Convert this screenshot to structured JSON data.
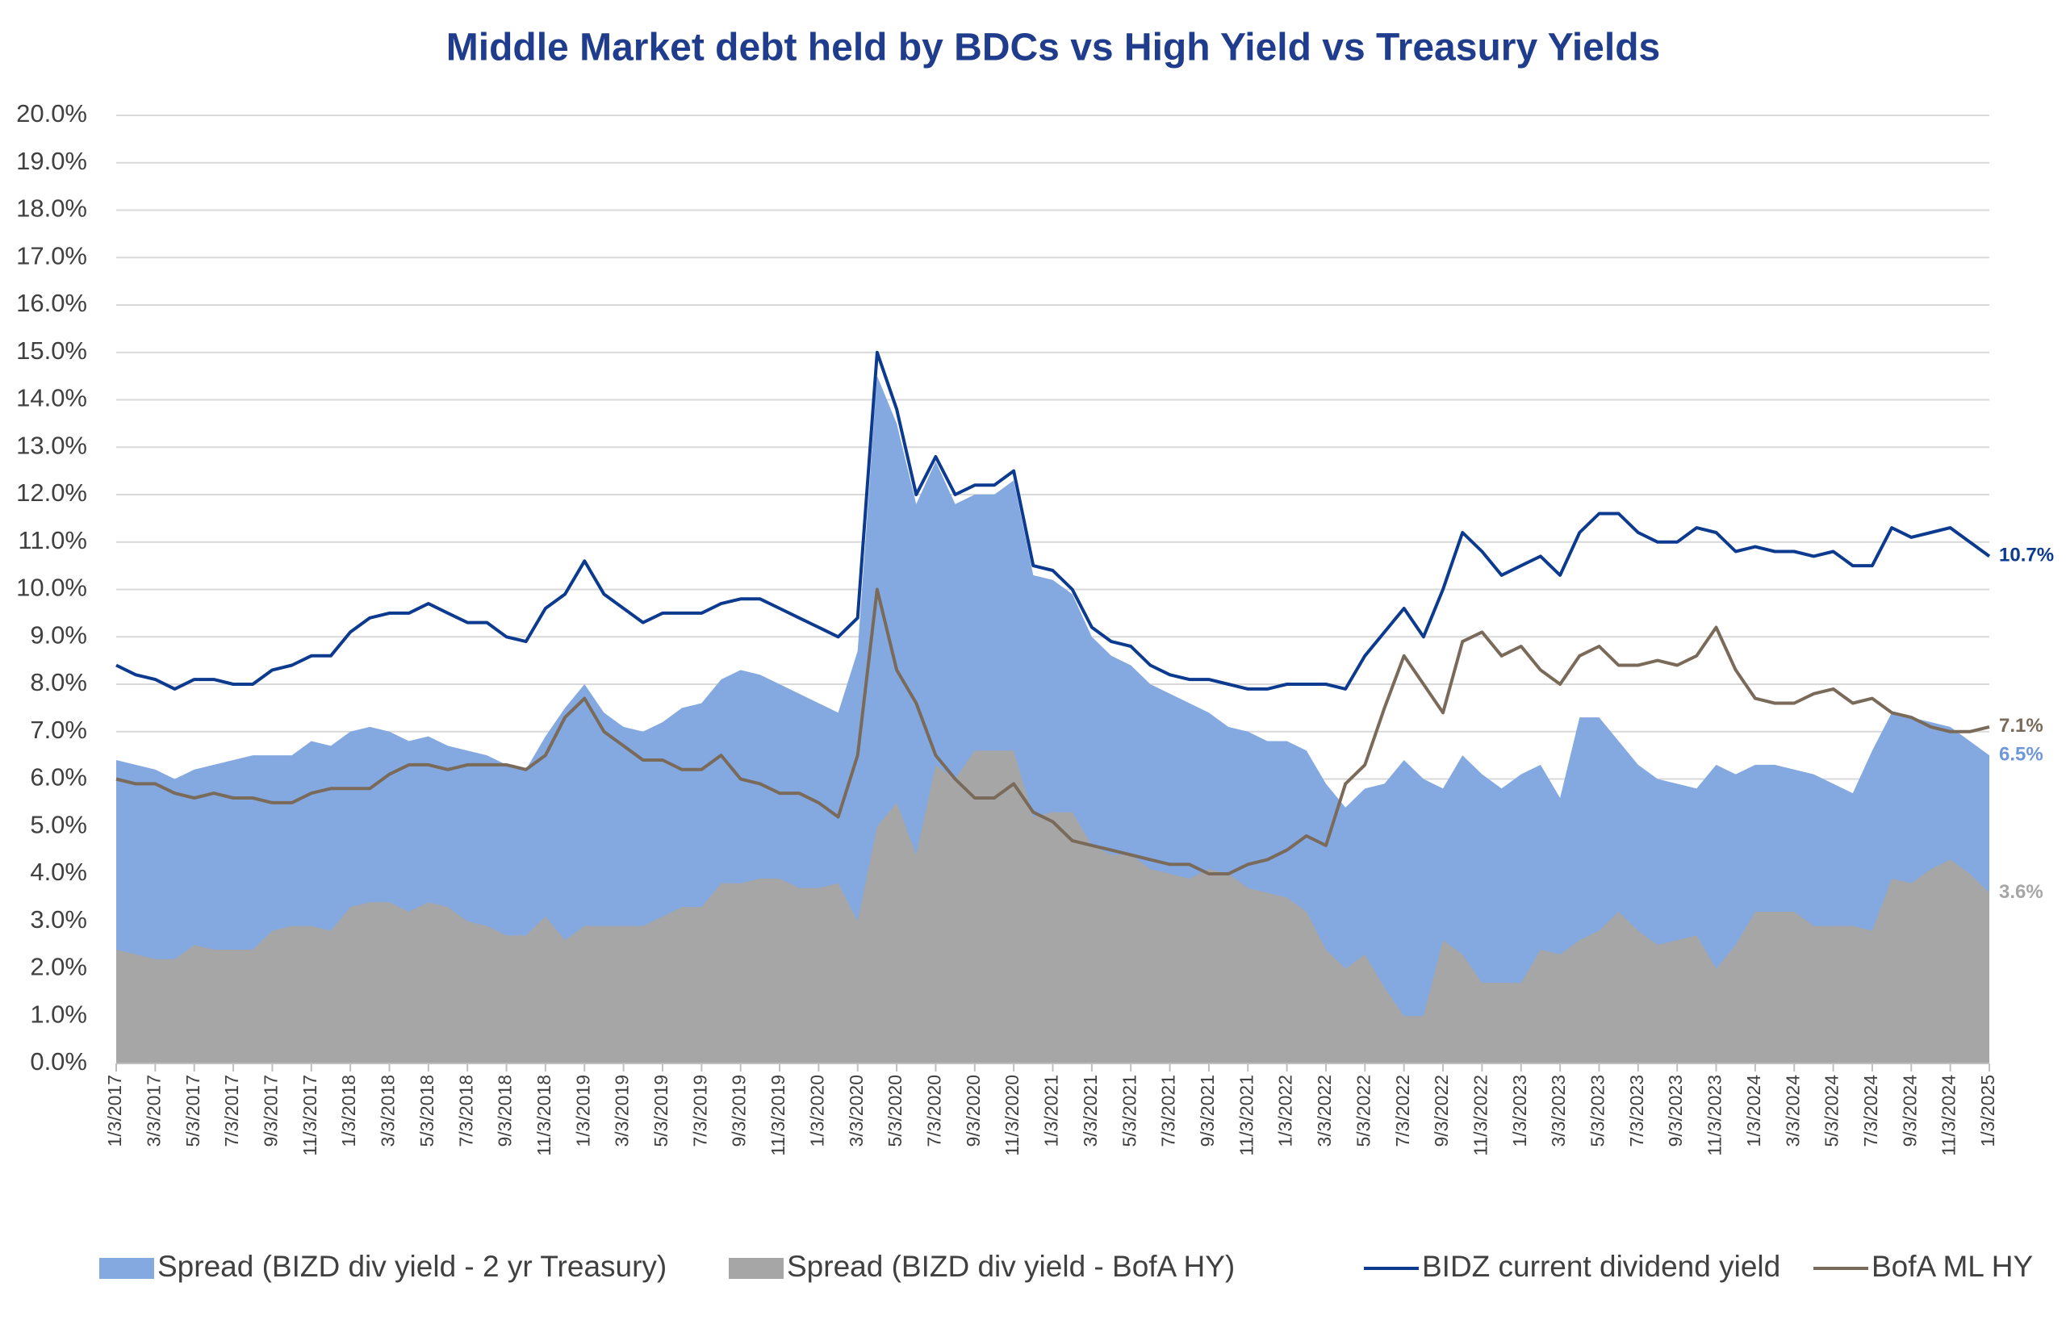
{
  "chart_data": {
    "type": "line",
    "title": "Middle Market debt held by BDCs vs High Yield vs Treasury Yields",
    "categories": [
      "1/3/2017",
      null,
      "3/3/2017",
      null,
      "5/3/2017",
      null,
      "7/3/2017",
      null,
      "9/3/2017",
      null,
      "11/3/2017",
      null,
      "1/3/2018",
      null,
      "3/3/2018",
      null,
      "5/3/2018",
      null,
      "7/3/2018",
      null,
      "9/3/2018",
      null,
      "11/3/2018",
      null,
      "1/3/2019",
      null,
      "3/3/2019",
      null,
      "5/3/2019",
      null,
      "7/3/2019",
      null,
      "9/3/2019",
      null,
      "11/3/2019",
      null,
      "1/3/2020",
      null,
      "3/3/2020",
      null,
      "5/3/2020",
      null,
      "7/3/2020",
      null,
      "9/3/2020",
      null,
      "11/3/2020",
      null,
      "1/3/2021",
      null,
      "3/3/2021",
      null,
      "5/3/2021",
      null,
      "7/3/2021",
      null,
      "9/3/2021",
      null,
      "11/3/2021",
      null,
      "1/3/2022",
      null,
      "3/3/2022",
      null,
      "5/3/2022",
      null,
      "7/3/2022",
      null,
      "9/3/2022",
      null,
      "11/3/2022",
      null,
      "1/3/2023",
      null,
      "3/3/2023",
      null,
      "5/3/2023",
      null,
      "7/3/2023",
      null,
      "9/3/2023",
      null,
      "11/3/2023",
      null,
      "1/3/2024",
      null,
      "3/3/2024",
      null,
      "5/3/2024",
      null,
      "7/3/2024",
      null,
      "9/3/2024",
      null,
      "11/3/2024",
      null,
      "1/3/2025"
    ],
    "ylim": [
      0,
      20
    ],
    "yticks": [
      {
        "value": 0,
        "label": "0.0%"
      },
      {
        "value": 1,
        "label": "1.0%"
      },
      {
        "value": 2,
        "label": "2.0%"
      },
      {
        "value": 3,
        "label": "3.0%"
      },
      {
        "value": 4,
        "label": "4.0%"
      },
      {
        "value": 5,
        "label": "5.0%"
      },
      {
        "value": 6,
        "label": "6.0%"
      },
      {
        "value": 7,
        "label": "7.0%"
      },
      {
        "value": 8,
        "label": "8.0%"
      },
      {
        "value": 9,
        "label": "9.0%"
      },
      {
        "value": 10,
        "label": "10.0%"
      },
      {
        "value": 11,
        "label": "11.0%"
      },
      {
        "value": 12,
        "label": "12.0%"
      },
      {
        "value": 13,
        "label": "13.0%"
      },
      {
        "value": 14,
        "label": "14.0%"
      },
      {
        "value": 15,
        "label": "15.0%"
      },
      {
        "value": 16,
        "label": "16.0%"
      },
      {
        "value": 17,
        "label": "17.0%"
      },
      {
        "value": 18,
        "label": "18.0%"
      },
      {
        "value": 19,
        "label": "19.0%"
      },
      {
        "value": 20,
        "label": "20.0%"
      }
    ],
    "grid": true,
    "legend": "bottom",
    "series": [
      {
        "name": "Spread (BIZD div yield - 2 yr Treasury)",
        "type": "area",
        "color": "#84a8e0",
        "label_color": "#6f97d8",
        "values": [
          6.4,
          6.3,
          6.2,
          6.0,
          6.2,
          6.3,
          6.4,
          6.5,
          6.5,
          6.5,
          6.8,
          6.7,
          7.0,
          7.1,
          7.0,
          6.8,
          6.9,
          6.7,
          6.6,
          6.5,
          6.3,
          6.2,
          6.9,
          7.5,
          8.0,
          7.4,
          7.1,
          7.0,
          7.2,
          7.5,
          7.6,
          8.1,
          8.3,
          8.2,
          8.0,
          7.8,
          7.6,
          7.4,
          8.7,
          14.5,
          13.5,
          11.8,
          12.7,
          11.8,
          12.0,
          12.0,
          12.3,
          10.3,
          10.2,
          9.9,
          9.0,
          8.6,
          8.4,
          8.0,
          7.8,
          7.6,
          7.4,
          7.1,
          7.0,
          6.8,
          6.8,
          6.6,
          5.9,
          5.4,
          5.8,
          5.9,
          6.4,
          6.0,
          5.8,
          6.5,
          6.1,
          5.8,
          6.1,
          6.3,
          5.6,
          7.3,
          7.3,
          6.8,
          6.3,
          6.0,
          5.9,
          5.8,
          6.3,
          6.1,
          6.3,
          6.3,
          6.2,
          6.1,
          5.9,
          5.7,
          6.6,
          7.4,
          7.3,
          7.2,
          7.1,
          6.8,
          6.5
        ],
        "value_labels": [
          null,
          null,
          null,
          null,
          null,
          null,
          null,
          null,
          null,
          null,
          null,
          null,
          null,
          null,
          null,
          null,
          null,
          null,
          null,
          null,
          null,
          null,
          null,
          null,
          null,
          null,
          null,
          null,
          null,
          null,
          null,
          null,
          null,
          null,
          null,
          null,
          null,
          null,
          null,
          null,
          null,
          null,
          null,
          null,
          null,
          null,
          null,
          null,
          null,
          null,
          null,
          null,
          null,
          null,
          null,
          null,
          null,
          null,
          null,
          null,
          null,
          null,
          null,
          null,
          null,
          null,
          null,
          null,
          null,
          null,
          null,
          null,
          null,
          null,
          null,
          null,
          null,
          null,
          null,
          null,
          null,
          null,
          null,
          null,
          null,
          null,
          null,
          null,
          null,
          null,
          null,
          null,
          null,
          null,
          null,
          null,
          "6.5%"
        ]
      },
      {
        "name": "Spread (BIZD div yield - BofA HY)",
        "type": "area",
        "color": "#a6a6a6",
        "label_color": "#a6a6a6",
        "values": [
          2.4,
          2.3,
          2.2,
          2.2,
          2.5,
          2.4,
          2.4,
          2.4,
          2.8,
          2.9,
          2.9,
          2.8,
          3.3,
          3.4,
          3.4,
          3.2,
          3.4,
          3.3,
          3.0,
          2.9,
          2.7,
          2.7,
          3.1,
          2.6,
          2.9,
          2.9,
          2.9,
          2.9,
          3.1,
          3.3,
          3.3,
          3.8,
          3.8,
          3.9,
          3.9,
          3.7,
          3.7,
          3.8,
          3.0,
          5.0,
          5.5,
          4.4,
          6.3,
          6.0,
          6.6,
          6.6,
          6.6,
          5.2,
          5.3,
          5.3,
          4.6,
          4.4,
          4.4,
          4.1,
          4.0,
          3.9,
          4.1,
          4.0,
          3.7,
          3.6,
          3.5,
          3.2,
          2.4,
          2.0,
          2.3,
          1.6,
          1.0,
          1.0,
          2.6,
          2.3,
          1.7,
          1.7,
          1.7,
          2.4,
          2.3,
          2.6,
          2.8,
          3.2,
          2.8,
          2.5,
          2.6,
          2.7,
          2.0,
          2.5,
          3.2,
          3.2,
          3.2,
          2.9,
          2.9,
          2.9,
          2.8,
          3.9,
          3.8,
          4.1,
          4.3,
          4.0,
          3.6
        ],
        "value_labels": [
          null,
          null,
          null,
          null,
          null,
          null,
          null,
          null,
          null,
          null,
          null,
          null,
          null,
          null,
          null,
          null,
          null,
          null,
          null,
          null,
          null,
          null,
          null,
          null,
          null,
          null,
          null,
          null,
          null,
          null,
          null,
          null,
          null,
          null,
          null,
          null,
          null,
          null,
          null,
          null,
          null,
          null,
          null,
          null,
          null,
          null,
          null,
          null,
          null,
          null,
          null,
          null,
          null,
          null,
          null,
          null,
          null,
          null,
          null,
          null,
          null,
          null,
          null,
          null,
          null,
          null,
          null,
          null,
          null,
          null,
          null,
          null,
          null,
          null,
          null,
          null,
          null,
          null,
          null,
          null,
          null,
          null,
          null,
          null,
          null,
          null,
          null,
          null,
          null,
          null,
          null,
          null,
          null,
          null,
          null,
          null,
          "3.6%"
        ]
      },
      {
        "name": "BIDZ current dividend yield",
        "type": "line",
        "color": "#0b3a8f",
        "label_color": "#0b3a8f",
        "values": [
          8.4,
          8.2,
          8.1,
          7.9,
          8.1,
          8.1,
          8.0,
          8.0,
          8.3,
          8.4,
          8.6,
          8.6,
          9.1,
          9.4,
          9.5,
          9.5,
          9.7,
          9.5,
          9.3,
          9.3,
          9.0,
          8.9,
          9.6,
          9.9,
          10.6,
          9.9,
          9.6,
          9.3,
          9.5,
          9.5,
          9.5,
          9.7,
          9.8,
          9.8,
          9.6,
          9.4,
          9.2,
          9.0,
          9.4,
          15.0,
          13.8,
          12.0,
          12.8,
          12.0,
          12.2,
          12.2,
          12.5,
          10.5,
          10.4,
          10.0,
          9.2,
          8.9,
          8.8,
          8.4,
          8.2,
          8.1,
          8.1,
          8.0,
          7.9,
          7.9,
          8.0,
          8.0,
          8.0,
          7.9,
          8.6,
          9.1,
          9.6,
          9.0,
          10.0,
          11.2,
          10.8,
          10.3,
          10.5,
          10.7,
          10.3,
          11.2,
          11.6,
          11.6,
          11.2,
          11.0,
          11.0,
          11.3,
          11.2,
          10.8,
          10.9,
          10.8,
          10.8,
          10.7,
          10.8,
          10.5,
          10.5,
          11.3,
          11.1,
          11.2,
          11.3,
          11.0,
          10.7
        ],
        "value_labels": [
          null,
          null,
          null,
          null,
          null,
          null,
          null,
          null,
          null,
          null,
          null,
          null,
          null,
          null,
          null,
          null,
          null,
          null,
          null,
          null,
          null,
          null,
          null,
          null,
          null,
          null,
          null,
          null,
          null,
          null,
          null,
          null,
          null,
          null,
          null,
          null,
          null,
          null,
          null,
          null,
          null,
          null,
          null,
          null,
          null,
          null,
          null,
          null,
          null,
          null,
          null,
          null,
          null,
          null,
          null,
          null,
          null,
          null,
          null,
          null,
          null,
          null,
          null,
          null,
          null,
          null,
          null,
          null,
          null,
          null,
          null,
          null,
          null,
          null,
          null,
          null,
          null,
          null,
          null,
          null,
          null,
          null,
          null,
          null,
          null,
          null,
          null,
          null,
          null,
          null,
          null,
          null,
          null,
          null,
          null,
          null,
          "10.7%"
        ]
      },
      {
        "name": "BofA ML HY",
        "type": "line",
        "color": "#7a6a5a",
        "label_color": "#7a6a5a",
        "values": [
          6.0,
          5.9,
          5.9,
          5.7,
          5.6,
          5.7,
          5.6,
          5.6,
          5.5,
          5.5,
          5.7,
          5.8,
          5.8,
          5.8,
          6.1,
          6.3,
          6.3,
          6.2,
          6.3,
          6.3,
          6.3,
          6.2,
          6.5,
          7.3,
          7.7,
          7.0,
          6.7,
          6.4,
          6.4,
          6.2,
          6.2,
          6.5,
          6.0,
          5.9,
          5.7,
          5.7,
          5.5,
          5.2,
          6.5,
          10.0,
          8.3,
          7.6,
          6.5,
          6.0,
          5.6,
          5.6,
          5.9,
          5.3,
          5.1,
          4.7,
          4.6,
          4.5,
          4.4,
          4.3,
          4.2,
          4.2,
          4.0,
          4.0,
          4.2,
          4.3,
          4.5,
          4.8,
          4.6,
          5.9,
          6.3,
          7.5,
          8.6,
          8.0,
          7.4,
          8.9,
          9.1,
          8.6,
          8.8,
          8.3,
          8.0,
          8.6,
          8.8,
          8.4,
          8.4,
          8.5,
          8.4,
          8.6,
          9.2,
          8.3,
          7.7,
          7.6,
          7.6,
          7.8,
          7.9,
          7.6,
          7.7,
          7.4,
          7.3,
          7.1,
          7.0,
          7.0,
          7.1
        ],
        "value_labels": [
          null,
          null,
          null,
          null,
          null,
          null,
          null,
          null,
          null,
          null,
          null,
          null,
          null,
          null,
          null,
          null,
          null,
          null,
          null,
          null,
          null,
          null,
          null,
          null,
          null,
          null,
          null,
          null,
          null,
          null,
          null,
          null,
          null,
          null,
          null,
          null,
          null,
          null,
          null,
          null,
          null,
          null,
          null,
          null,
          null,
          null,
          null,
          null,
          null,
          null,
          null,
          null,
          null,
          null,
          null,
          null,
          null,
          null,
          null,
          null,
          null,
          null,
          null,
          null,
          null,
          null,
          null,
          null,
          null,
          null,
          null,
          null,
          null,
          null,
          null,
          null,
          null,
          null,
          null,
          null,
          null,
          null,
          null,
          null,
          null,
          null,
          null,
          null,
          null,
          null,
          null,
          null,
          null,
          null,
          null,
          null,
          "7.1%"
        ]
      }
    ]
  }
}
